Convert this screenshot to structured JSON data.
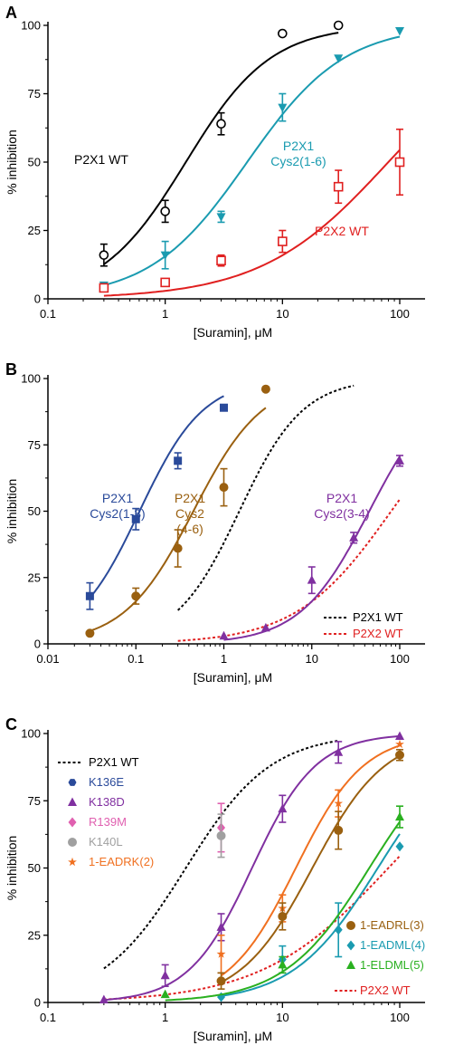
{
  "chart_data": [
    {
      "panel": "A",
      "type": "scatter",
      "xlabel": "[Suramin], μM",
      "ylabel": "% inhibition",
      "xscale": "log",
      "xlim": [
        0.1,
        100
      ],
      "ylim": [
        0,
        100
      ],
      "xticks": [
        "0.1",
        "1",
        "10",
        "100"
      ],
      "yticks": [
        "0",
        "25",
        "50",
        "75",
        "100"
      ],
      "series": [
        {
          "name": "P2X1 WT",
          "color": "#000000",
          "marker": "circle-open",
          "x": [
            0.3,
            1,
            3,
            10,
            30
          ],
          "y": [
            16,
            32,
            64,
            97,
            100
          ],
          "err": [
            4,
            4,
            4,
            0,
            0
          ],
          "fit": {
            "ic50": 1.5,
            "hill": 1.2,
            "xmin": 0.3,
            "xmax": 30
          },
          "label_lines": [
            "P2X1 WT"
          ]
        },
        {
          "name": "P2X1 Cys2(1-6)",
          "color": "#1a9bb0",
          "marker": "triangle-down",
          "x": [
            0.3,
            1,
            3,
            10,
            30,
            100
          ],
          "y": [
            5,
            16,
            30,
            70,
            88,
            98
          ],
          "err": [
            1,
            5,
            2,
            5,
            0,
            0
          ],
          "fit": {
            "ic50": 5,
            "hill": 1.05,
            "xmin": 0.3,
            "xmax": 100
          },
          "label_lines": [
            "P2X1",
            "Cys2(1-6)"
          ]
        },
        {
          "name": "P2X2 WT",
          "color": "#e02020",
          "marker": "square-open",
          "x": [
            0.3,
            1,
            3,
            10,
            30,
            100
          ],
          "y": [
            4,
            6,
            14,
            21,
            41,
            50
          ],
          "err": [
            1,
            1,
            2,
            4,
            6,
            12
          ],
          "fit": {
            "ic50": 80,
            "hill": 0.8,
            "xmin": 0.3,
            "xmax": 100
          },
          "label_lines": [
            "P2X2 WT"
          ]
        }
      ]
    },
    {
      "panel": "B",
      "type": "scatter",
      "xlabel": "[Suramin], μM",
      "ylabel": "% inhibition",
      "xscale": "log",
      "xlim": [
        0.01,
        100
      ],
      "ylim": [
        0,
        100
      ],
      "xticks": [
        "0.01",
        "0.1",
        "1",
        "10",
        "100"
      ],
      "yticks": [
        "0",
        "25",
        "50",
        "75",
        "100"
      ],
      "series": [
        {
          "name": "P2X1 Cys2(1-3)",
          "color": "#2a4a9a",
          "marker": "square",
          "x": [
            0.03,
            0.1,
            0.3,
            1
          ],
          "y": [
            18,
            47,
            69,
            89
          ],
          "err": [
            5,
            4,
            3,
            0
          ],
          "fit": {
            "ic50": 0.11,
            "hill": 1.2,
            "xmin": 0.03,
            "xmax": 1
          },
          "label_lines": [
            "P2X1",
            "Cys2(1-3)"
          ]
        },
        {
          "name": "P2X1 Cys2 (4-6)",
          "color": "#9a6010",
          "marker": "circle",
          "x": [
            0.03,
            0.1,
            0.3,
            1,
            3
          ],
          "y": [
            4,
            18,
            36,
            59,
            96
          ],
          "err": [
            0,
            3,
            7,
            7,
            0
          ],
          "fit": {
            "ic50": 0.45,
            "hill": 1.1,
            "xmin": 0.03,
            "xmax": 3
          },
          "label_lines": [
            "P2X1",
            "Cys2",
            "(4-6)"
          ]
        },
        {
          "name": "P2X1 Cys2(3-4)",
          "color": "#8030a0",
          "marker": "triangle",
          "x": [
            1,
            3,
            10,
            30,
            100
          ],
          "y": [
            3,
            6,
            24,
            40,
            69
          ],
          "err": [
            0,
            0,
            5,
            2,
            2
          ],
          "fit": {
            "ic50": 45,
            "hill": 1.1,
            "xmin": 1,
            "xmax": 100
          },
          "label_lines": [
            "P2X1",
            "Cys2(3-4)"
          ]
        }
      ],
      "reference": [
        {
          "name": "P2X1 WT",
          "color": "#000000",
          "ic50": 1.5,
          "hill": 1.2,
          "xmin": 0.3,
          "xmax": 30
        },
        {
          "name": "P2X2 WT",
          "color": "#e02020",
          "ic50": 80,
          "hill": 0.8,
          "xmin": 0.3,
          "xmax": 100
        }
      ]
    },
    {
      "panel": "C",
      "type": "scatter",
      "xlabel": "[Suramin], μM",
      "ylabel": "% inhibition",
      "xscale": "log",
      "xlim": [
        0.1,
        100
      ],
      "ylim": [
        0,
        100
      ],
      "xticks": [
        "0.1",
        "1",
        "10",
        "100"
      ],
      "yticks": [
        "0",
        "25",
        "50",
        "75",
        "100"
      ],
      "series": [
        {
          "name": "K136E",
          "color": "#2a4a9a",
          "marker": "hexagon",
          "x": [],
          "y": [],
          "err": [],
          "fit": null
        },
        {
          "name": "K138D",
          "color": "#8030a0",
          "marker": "triangle",
          "x": [
            0.3,
            1,
            3,
            10,
            30,
            100
          ],
          "y": [
            1,
            10,
            28,
            72,
            93,
            99
          ],
          "err": [
            0,
            4,
            5,
            5,
            4,
            0
          ],
          "fit": {
            "ic50": 5.5,
            "hill": 1.6,
            "xmin": 0.3,
            "xmax": 100
          }
        },
        {
          "name": "R139M",
          "color": "#e060b0",
          "marker": "diamond",
          "x": [
            3
          ],
          "y": [
            65
          ],
          "err": [
            9
          ],
          "fit": null
        },
        {
          "name": "K140L",
          "color": "#a0a0a0",
          "marker": "circle",
          "x": [
            3
          ],
          "y": [
            62
          ],
          "err": [
            8
          ],
          "fit": null
        },
        {
          "name": "1-EADRK",
          "suffix": "(2)",
          "color": "#f07020",
          "marker": "star",
          "x": [
            3,
            10,
            30,
            100
          ],
          "y": [
            18,
            35,
            74,
            96
          ],
          "err": [
            7,
            5,
            5,
            0
          ],
          "fit": {
            "ic50": 13,
            "hill": 1.5,
            "xmin": 3,
            "xmax": 100
          }
        },
        {
          "name": "1-EADRL",
          "suffix": "(3)",
          "color": "#9a6010",
          "marker": "circle",
          "x": [
            3,
            10,
            30,
            100
          ],
          "y": [
            8,
            32,
            64,
            92
          ],
          "err": [
            3,
            5,
            7,
            2
          ],
          "fit": {
            "ic50": 18,
            "hill": 1.4,
            "xmin": 3,
            "xmax": 100
          }
        },
        {
          "name": "1-EADML",
          "suffix": "(4)",
          "color": "#1a9bb0",
          "marker": "diamond",
          "x": [
            3,
            10,
            30,
            100
          ],
          "y": [
            2,
            16,
            27,
            58
          ],
          "err": [
            0,
            5,
            10,
            0
          ],
          "fit": {
            "ic50": 65,
            "hill": 1.2,
            "xmin": 3,
            "xmax": 100
          }
        },
        {
          "name": "1-ELDML",
          "suffix": "(5)",
          "color": "#2ab020",
          "marker": "triangle",
          "x": [
            1,
            10,
            100
          ],
          "y": [
            3,
            14,
            69
          ],
          "err": [
            0,
            3,
            4
          ],
          "fit": {
            "ic50": 55,
            "hill": 1.2,
            "xmin": 1,
            "xmax": 100
          }
        }
      ],
      "reference": [
        {
          "name": "P2X1 WT",
          "color": "#000000",
          "ic50": 1.5,
          "hill": 1.2,
          "xmin": 0.3,
          "xmax": 30
        },
        {
          "name": "P2X2 WT",
          "color": "#e02020",
          "ic50": 80,
          "hill": 0.8,
          "xmin": 0.3,
          "xmax": 100
        }
      ]
    }
  ]
}
